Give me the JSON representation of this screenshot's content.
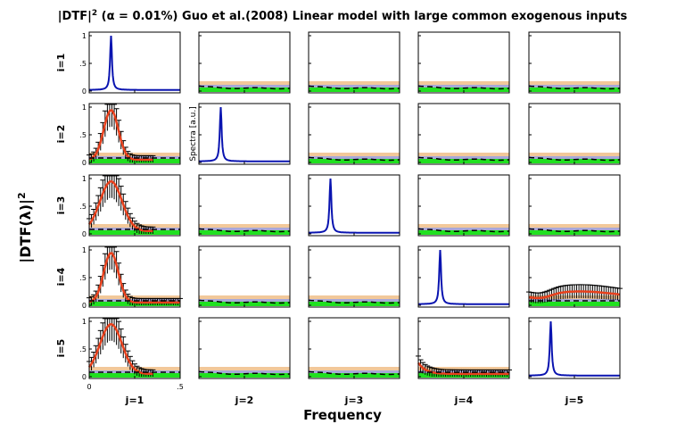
{
  "title_prefix": "|DTF|",
  "title_sup": "2",
  "title_suffix": " (α = 0.01%) Guo et al.(2008) Linear model with large common exogenous inputs",
  "ylabel_main": "|DTF(λ)|",
  "ylabel_sup": "2",
  "xlabel_main": "Frequency",
  "diag_ylabel": "Spectra [a.u.]",
  "row_labels": [
    "i=1",
    "i=2",
    "i=3",
    "i=4",
    "i=5"
  ],
  "col_labels": [
    "j=1",
    "j=2",
    "j=3",
    "j=4",
    "j=5"
  ],
  "y_tick_labels": [
    "0",
    ".5",
    "1"
  ],
  "x_tick_labels": [
    "0",
    ".5"
  ],
  "colors": {
    "dtf_mean": "#e8401c",
    "errorbar": "#000000",
    "spectra": "#0a14b0",
    "threshold": "#000000",
    "significant_band": "#20e020",
    "band_orange": "#f2c89a",
    "band_purple": "#a8a8d8"
  },
  "chart_data": {
    "type": "line",
    "grid": "5x5 small multiples",
    "xlim": [
      0,
      0.5
    ],
    "ylim": [
      0,
      1.05
    ],
    "diagonal": [
      {
        "i": 1,
        "j": 1,
        "peak_freq": 0.12,
        "peak_value": 1.0
      },
      {
        "i": 2,
        "j": 2,
        "peak_freq": 0.12,
        "peak_value": 1.0
      },
      {
        "i": 3,
        "j": 3,
        "peak_freq": 0.12,
        "peak_value": 1.0
      },
      {
        "i": 4,
        "j": 4,
        "peak_freq": 0.12,
        "peak_value": 1.0
      },
      {
        "i": 5,
        "j": 5,
        "peak_freq": 0.12,
        "peak_value": 1.0
      }
    ],
    "significant_cells": [
      {
        "i": 2,
        "j": 1,
        "peak_freq": 0.12,
        "peak_value": 0.95
      },
      {
        "i": 3,
        "j": 1,
        "peak_freq": 0.12,
        "peak_value": 0.95
      },
      {
        "i": 4,
        "j": 1,
        "peak_freq": 0.12,
        "peak_value": 0.95
      },
      {
        "i": 5,
        "j": 1,
        "peak_freq": 0.12,
        "peak_value": 0.95
      },
      {
        "i": 4,
        "j": 5,
        "peak_freq": 0.25,
        "peak_value": 0.2
      },
      {
        "i": 5,
        "j": 4,
        "peak_freq": 0.0,
        "peak_value": 0.25
      }
    ]
  }
}
